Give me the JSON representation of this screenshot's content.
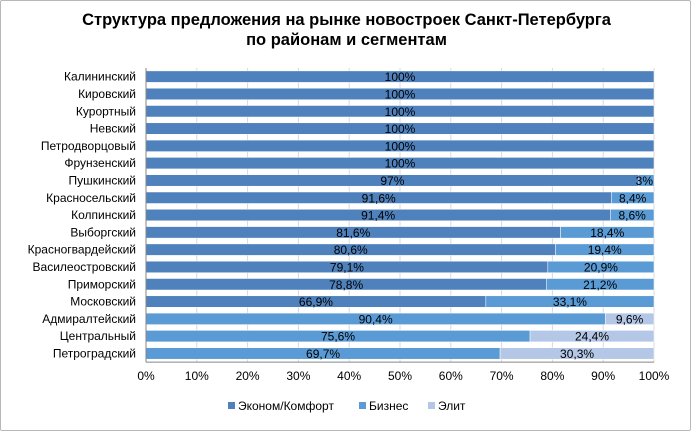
{
  "chart_data": {
    "type": "bar",
    "orientation": "horizontal",
    "stacked": "percent",
    "title_line1": "Структура  предложения на рынке новостроек Санкт-Петербурга",
    "title_line2": "по районам и сегментам",
    "categories": [
      "Калининский",
      "Кировский",
      "Курортный",
      "Невский",
      "Петродворцовый",
      "Фрунзенский",
      "Пушкинский",
      "Красносельский",
      "Колпинский",
      "Выборгский",
      "Красногвардейский",
      "Василеостровский",
      "Приморский",
      "Московский",
      "Адмиралтейский",
      "Центральный",
      "Петроградский"
    ],
    "series": [
      {
        "name": "Эконом/Комфорт",
        "color": "#4f81bd",
        "values": [
          100,
          100,
          100,
          100,
          100,
          100,
          97,
          91.6,
          91.4,
          81.6,
          80.6,
          79.1,
          78.8,
          66.9,
          0,
          0,
          0
        ],
        "labels": [
          "100%",
          "100%",
          "100%",
          "100%",
          "100%",
          "100%",
          "97%",
          "91,6%",
          "91,4%",
          "81,6%",
          "80,6%",
          "79,1%",
          "78,8%",
          "66,9%",
          "",
          "",
          ""
        ]
      },
      {
        "name": "Бизнес",
        "color": "#5b9bd5",
        "values": [
          0,
          0,
          0,
          0,
          0,
          0,
          3,
          8.4,
          8.6,
          18.4,
          19.4,
          20.9,
          21.2,
          33.1,
          90.4,
          75.6,
          69.7
        ],
        "labels": [
          "",
          "",
          "",
          "",
          "",
          "",
          "3%",
          "8,4%",
          "8,6%",
          "18,4%",
          "19,4%",
          "20,9%",
          "21,2%",
          "33,1%",
          "90,4%",
          "75,6%",
          "69,7%"
        ]
      },
      {
        "name": "Элит",
        "color": "#b4c7e7",
        "values": [
          0,
          0,
          0,
          0,
          0,
          0,
          0,
          0,
          0,
          0,
          0,
          0,
          0,
          0,
          9.6,
          24.4,
          30.3
        ],
        "labels": [
          "",
          "",
          "",
          "",
          "",
          "",
          "",
          "",
          "",
          "",
          "",
          "",
          "",
          "",
          "9,6%",
          "24,4%",
          "30,3%"
        ]
      }
    ],
    "x_ticks": [
      "0%",
      "10%",
      "20%",
      "30%",
      "40%",
      "50%",
      "60%",
      "70%",
      "80%",
      "90%",
      "100%"
    ],
    "xlim": [
      0,
      100
    ],
    "legend_position": "bottom",
    "grid": true
  }
}
